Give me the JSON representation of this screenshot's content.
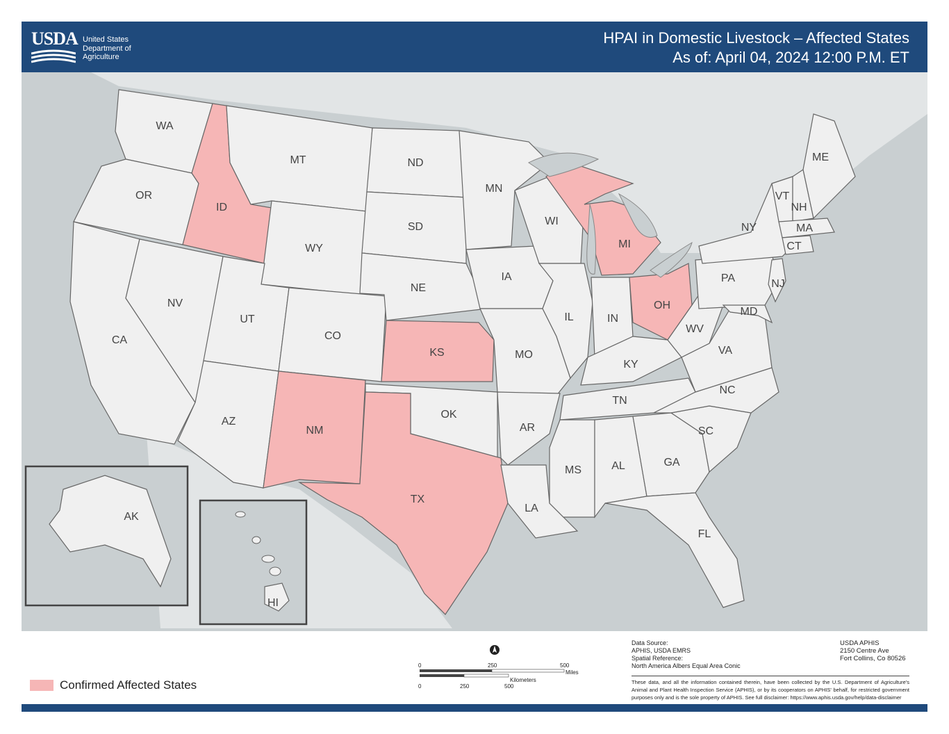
{
  "header": {
    "agency_acronym": "USDA",
    "agency_name_lines": [
      "United States",
      "Department of",
      "Agriculture"
    ],
    "title_line1": "HPAI in Domestic Livestock – Affected States",
    "title_line2": "As of: April 04, 2024 12:00 P.M. ET"
  },
  "colors": {
    "header": "#1f4a7c",
    "affected": "#f6b6b6",
    "unaffected": "#f0f0f0",
    "water": "#c9cfd1"
  },
  "states": {
    "WA": "WA",
    "OR": "OR",
    "CA": "CA",
    "ID": "ID",
    "NV": "NV",
    "MT": "MT",
    "WY": "WY",
    "UT": "UT",
    "AZ": "AZ",
    "CO": "CO",
    "NM": "NM",
    "ND": "ND",
    "SD": "SD",
    "NE": "NE",
    "KS": "KS",
    "OK": "OK",
    "TX": "TX",
    "MN": "MN",
    "IA": "IA",
    "MO": "MO",
    "AR": "AR",
    "LA": "LA",
    "WI": "WI",
    "IL": "IL",
    "MI": "MI",
    "IN": "IN",
    "OH": "OH",
    "KY": "KY",
    "TN": "TN",
    "MS": "MS",
    "AL": "AL",
    "GA": "GA",
    "FL": "FL",
    "SC": "SC",
    "NC": "NC",
    "VA": "VA",
    "WV": "WV",
    "PA": "PA",
    "NY": "NY",
    "VT": "VT",
    "NH": "NH",
    "ME": "ME",
    "MA": "MA",
    "CT": "CT",
    "NJ": "NJ",
    "MD": "MD",
    "AK": "AK",
    "HI": "HI"
  },
  "affected_states": [
    "ID",
    "TX",
    "NM",
    "KS",
    "MI",
    "OH"
  ],
  "legend": {
    "label": "Confirmed Affected States"
  },
  "scale_bar": {
    "miles_labels": [
      "0",
      "250",
      "500"
    ],
    "miles_unit": "Miles",
    "km_labels": [
      "0",
      "250",
      "500"
    ],
    "km_unit": "Kilometers"
  },
  "source": {
    "data_source_label": "Data Source:",
    "data_source": "APHIS, USDA EMRS",
    "spatial_ref_label": "Spatial Reference:",
    "spatial_ref": "North America Albers Equal Area Conic"
  },
  "address": [
    "USDA APHIS",
    "2150 Centre Ave",
    "Fort Collins, Co 80526"
  ],
  "disclaimer": "These data, and all the information contained therein, have been collected by the U.S. Department of Agriculture's Animal and Plant Health Inspection Service (APHIS), or by its cooperators on APHIS' behalf, for restricted government purposes only and is the sole property of APHIS. See full disclaimer: https://www.aphis.usda.gov/help/data-disclaimer"
}
